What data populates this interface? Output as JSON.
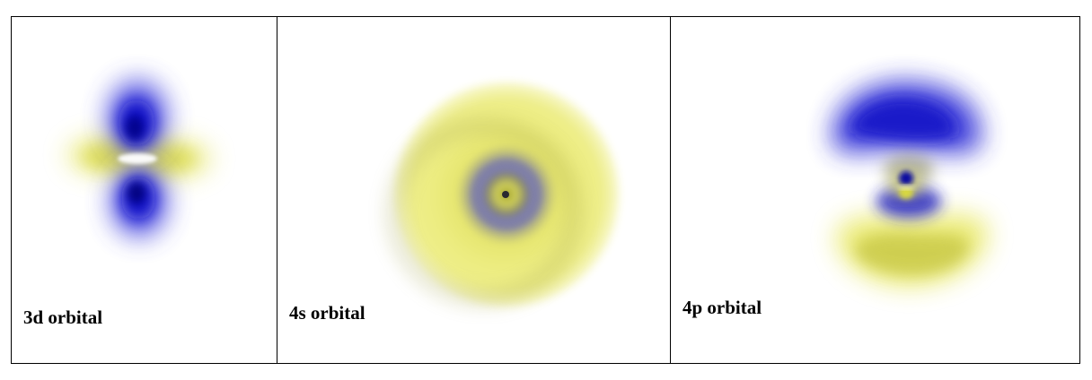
{
  "panels": [
    {
      "id": "3d",
      "label": "3d orbital"
    },
    {
      "id": "4s",
      "label": "4s orbital"
    },
    {
      "id": "4p",
      "label": "4p orbital"
    }
  ],
  "colors": {
    "positive_lobe": "#1a1ad8",
    "negative_lobe": "#ecec70",
    "node_gray": "#9a9ab0",
    "border": "#000000",
    "background": "#ffffff"
  }
}
